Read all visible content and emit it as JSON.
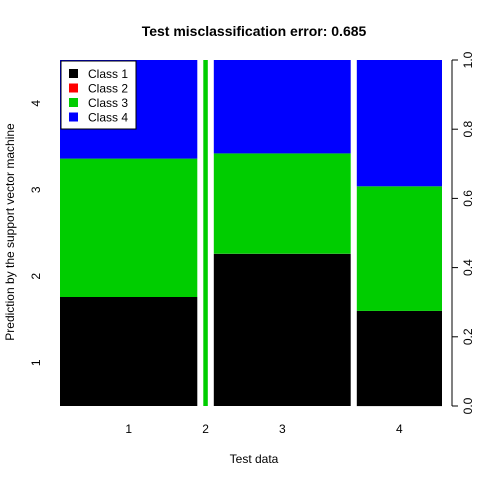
{
  "chart_data": {
    "type": "bar",
    "subtype": "stacked-proportional-mosaic",
    "title": "Test misclassification error: 0.685",
    "xlabel": "Test data",
    "ylabel": "Prediction by the support vector machine",
    "categories": [
      "1",
      "2",
      "3",
      "4"
    ],
    "category_widths": [
      0.364,
      0.012,
      0.363,
      0.226
    ],
    "y_left_ticks": [
      "1",
      "2",
      "3",
      "4"
    ],
    "y_right_ticks": [
      "0.0",
      "0.2",
      "0.4",
      "0.6",
      "0.8",
      "1.0"
    ],
    "ylim": [
      0,
      1
    ],
    "series": [
      {
        "name": "Class 1",
        "color": "#000000",
        "values": [
          0.315,
          0.0,
          0.44,
          0.275
        ]
      },
      {
        "name": "Class 2",
        "color": "#ff0000",
        "values": [
          0.0,
          0.0,
          0.0,
          0.0
        ]
      },
      {
        "name": "Class 3",
        "color": "#00cd00",
        "values": [
          0.4,
          1.0,
          0.29,
          0.36
        ]
      },
      {
        "name": "Class 4",
        "color": "#0000ff",
        "values": [
          0.285,
          0.0,
          0.27,
          0.365
        ]
      }
    ],
    "legend": {
      "position": "top-left"
    },
    "grid": false
  }
}
